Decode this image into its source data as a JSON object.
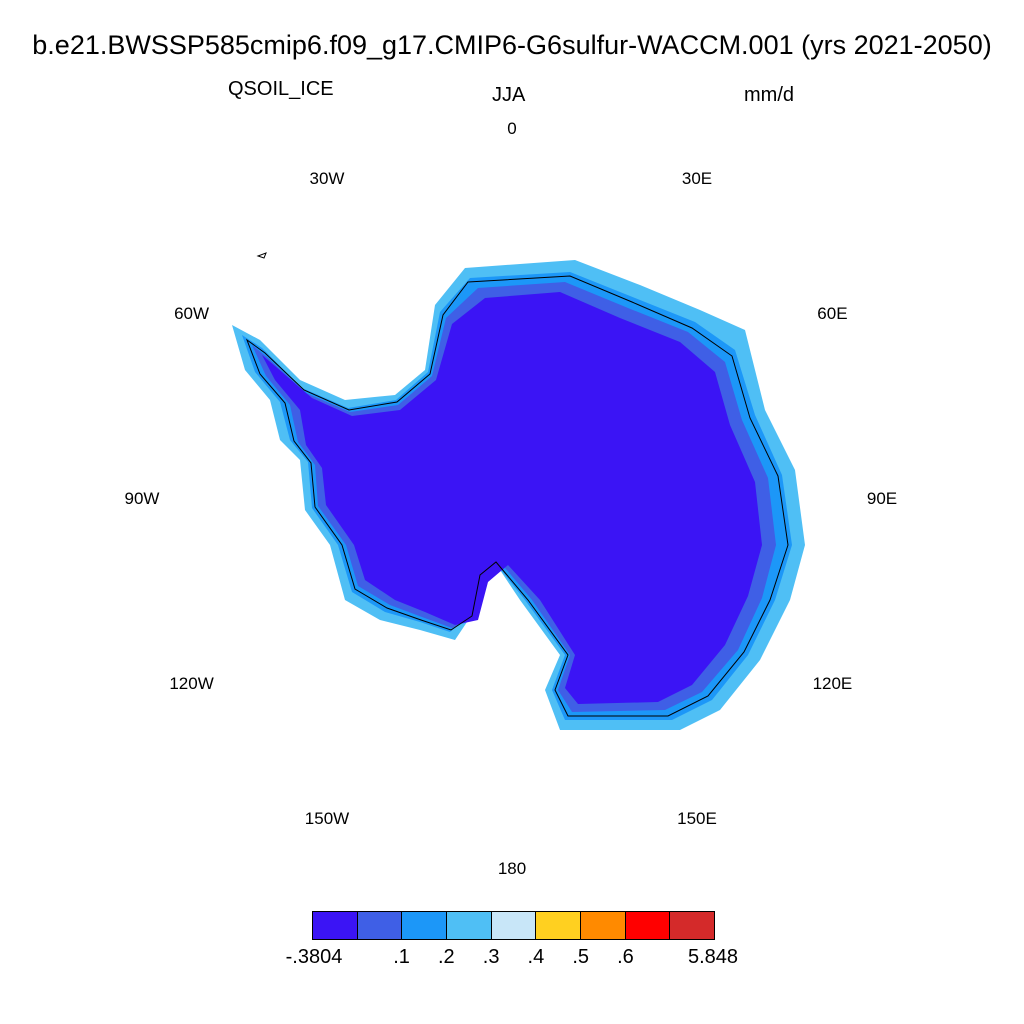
{
  "title": "b.e21.BWSSP585cmip6.f09_g17.CMIP6-G6sulfur-WACCM.001 (yrs 2021-2050)",
  "variable": "QSOIL_ICE",
  "season": "JJA",
  "units": "mm/d",
  "longitude_labels": [
    {
      "id": "lon-0",
      "text": "0"
    },
    {
      "id": "lon-30e",
      "text": "30E"
    },
    {
      "id": "lon-60e",
      "text": "60E"
    },
    {
      "id": "lon-90e",
      "text": "90E"
    },
    {
      "id": "lon-120e",
      "text": "120E"
    },
    {
      "id": "lon-150e",
      "text": "150E"
    },
    {
      "id": "lon-180",
      "text": "180"
    },
    {
      "id": "lon-150w",
      "text": "150W"
    },
    {
      "id": "lon-120w",
      "text": "120W"
    },
    {
      "id": "lon-90w",
      "text": "90W"
    },
    {
      "id": "lon-60w",
      "text": "60W"
    },
    {
      "id": "lon-30w",
      "text": "30W"
    }
  ],
  "colorbar": {
    "colors": [
      "#3b14f5",
      "#3f5fe6",
      "#1c97f8",
      "#4fbff5",
      "#c8e6f8",
      "#ffd020",
      "#ff8a00",
      "#ff0000",
      "#d42a2a"
    ],
    "labels": [
      "-.3804",
      ".1",
      ".2",
      ".3",
      ".4",
      ".5",
      ".6",
      "5.848"
    ]
  },
  "map_colors": {
    "interior": "#3b14f5",
    "band1": "#3f5fe6",
    "band2": "#1c97f8",
    "band3": "#4fbff5",
    "coast": "#000000"
  }
}
